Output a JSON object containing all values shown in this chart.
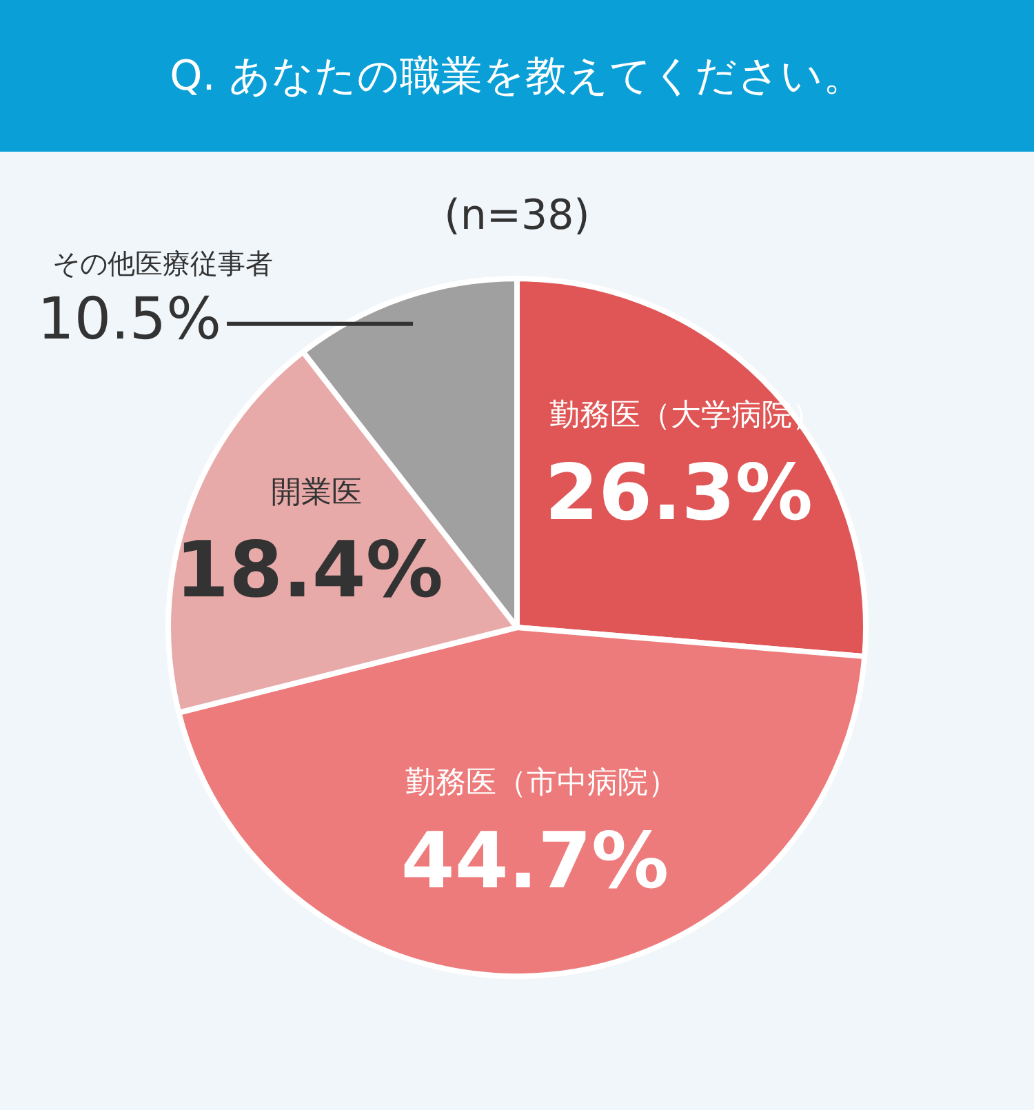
{
  "chart_data": {
    "type": "pie",
    "title": "Q. あなたの職業を教えてください。",
    "subtitle": "(n=38)",
    "categories": [
      "勤務医（大学病院）",
      "勤務医（市中病院）",
      "開業医",
      "その他医療従事者"
    ],
    "values": [
      26.3,
      44.7,
      18.4,
      10.5
    ],
    "colors": [
      "#e05555",
      "#ee7b7b",
      "#e8a9a9",
      "#a0a0a0"
    ],
    "value_labels": [
      "26.3%",
      "44.7%",
      "18.4%",
      "10.5%"
    ],
    "legend": false
  }
}
